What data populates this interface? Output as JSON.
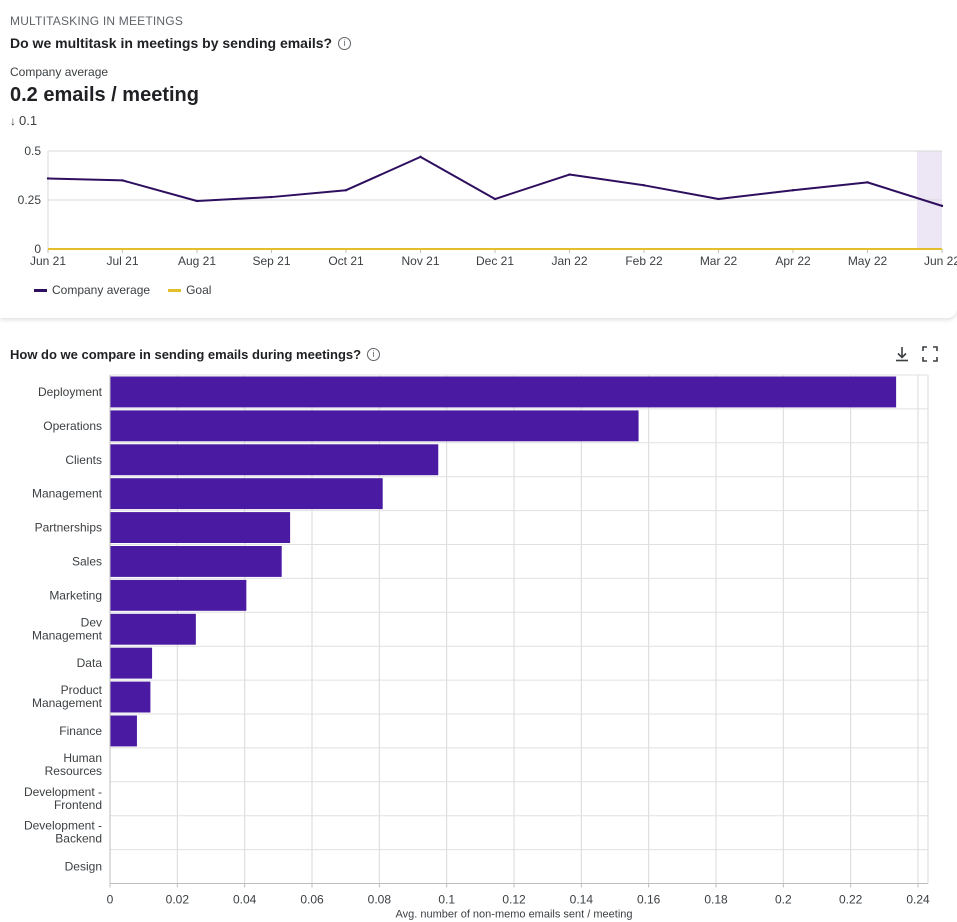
{
  "section_label": "MULTITASKING IN MEETINGS",
  "trend_card": {
    "title": "Do we multitask in meetings by sending emails?",
    "avg_label": "Company average",
    "avg_value": "0.2 emails / meeting",
    "delta_arrow": "↓",
    "delta_value": "0.1"
  },
  "compare_card": {
    "title": "How do we compare in sending emails during meetings?"
  },
  "icons": {
    "info": "info-icon",
    "download": "download-icon",
    "fullscreen": "fullscreen-icon"
  },
  "colors": {
    "accent": "#4a1aa3",
    "line": "#2e0f5f",
    "goal": "#e3c02b",
    "highlight": "#ece6f5"
  },
  "chart_data": [
    {
      "type": "line",
      "categories": [
        "Jun 21",
        "Jul 21",
        "Aug 21",
        "Sep 21",
        "Oct 21",
        "Nov 21",
        "Dec 21",
        "Jan 22",
        "Feb 22",
        "Mar 22",
        "Apr 22",
        "May 22",
        "Jun 22"
      ],
      "yticks": [
        "0",
        "0.25",
        "0.5"
      ],
      "ylim": [
        0,
        0.5
      ],
      "series": [
        {
          "name": "Company average",
          "values": [
            0.36,
            0.35,
            0.245,
            0.265,
            0.3,
            0.47,
            0.255,
            0.38,
            0.325,
            0.255,
            0.3,
            0.34,
            0.22
          ]
        },
        {
          "name": "Goal",
          "values": [
            0,
            0,
            0,
            0,
            0,
            0,
            0,
            0,
            0,
            0,
            0,
            0,
            0
          ]
        }
      ],
      "grid": true,
      "legend": "bottom-left"
    },
    {
      "type": "bar",
      "orientation": "horizontal",
      "categories": [
        "Deployment",
        "Operations",
        "Clients",
        "Management",
        "Partnerships",
        "Sales",
        "Marketing",
        "Dev Management",
        "Data",
        "Product Management",
        "Finance",
        "Human Resources",
        "Development - Frontend",
        "Development - Backend",
        "Design"
      ],
      "values": [
        0.2335,
        0.157,
        0.0975,
        0.081,
        0.0535,
        0.051,
        0.0405,
        0.0255,
        0.0125,
        0.012,
        0.008,
        0,
        0,
        0,
        0
      ],
      "xlabel": "Avg. number of non-memo emails sent / meeting",
      "xticks": [
        "0",
        "0.02",
        "0.04",
        "0.06",
        "0.08",
        "0.1",
        "0.12",
        "0.14",
        "0.16",
        "0.18",
        "0.2",
        "0.22",
        "0.24"
      ],
      "xlim": [
        0,
        0.24
      ],
      "grid": true
    }
  ]
}
